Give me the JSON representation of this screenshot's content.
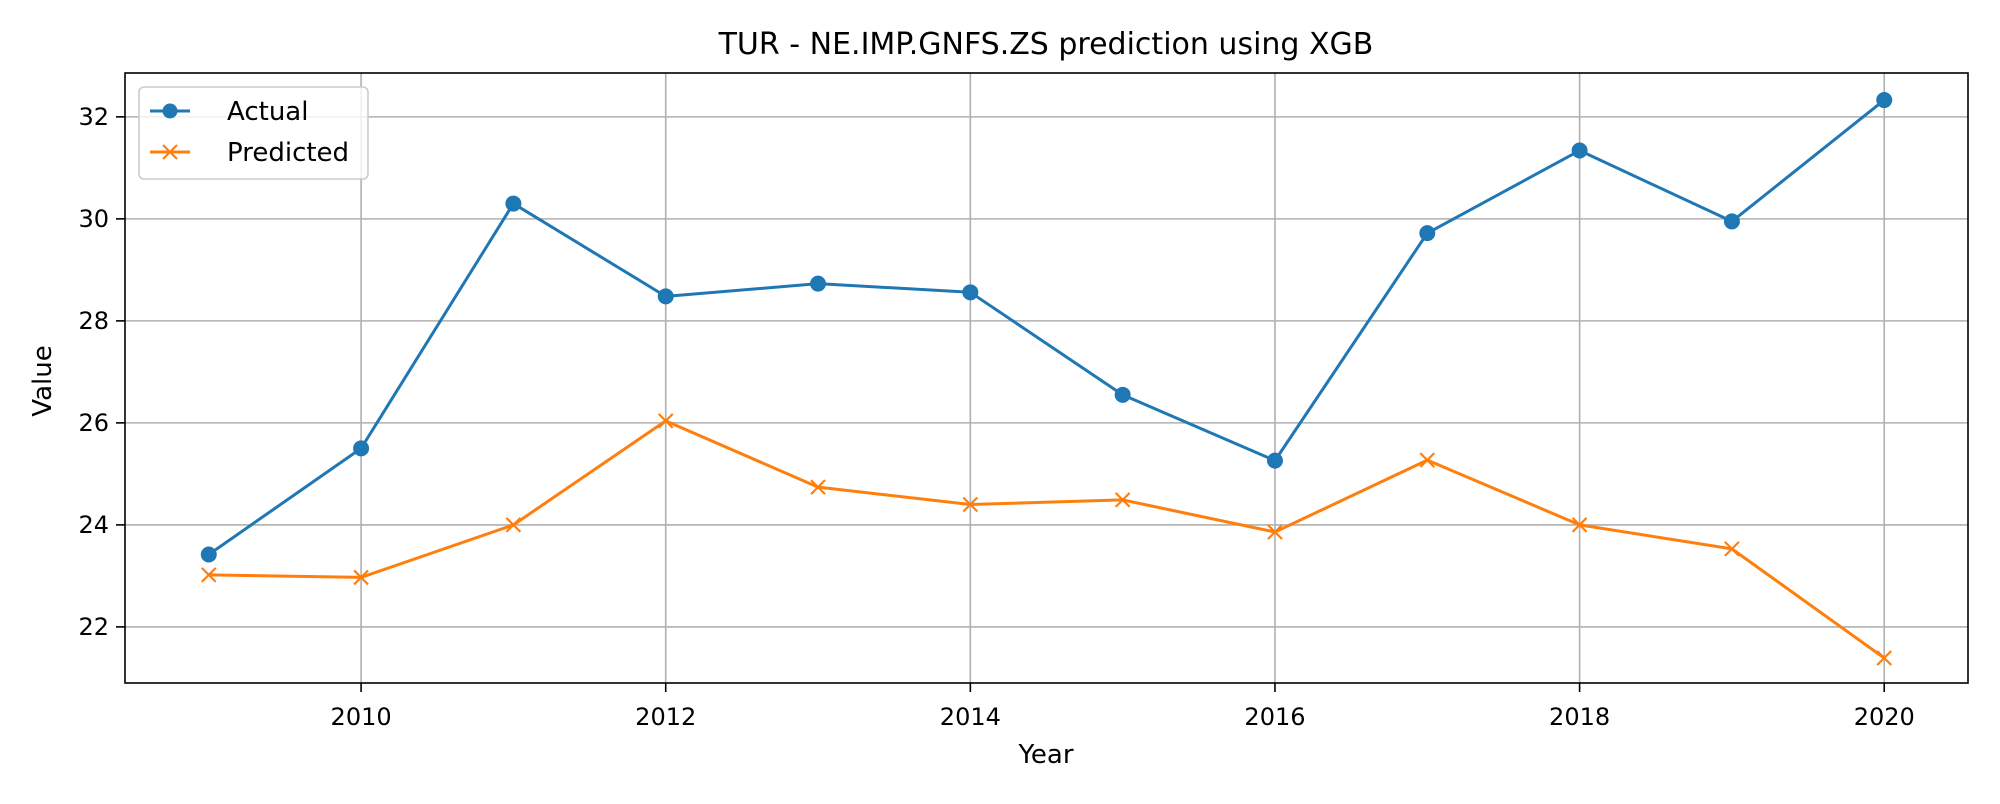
{
  "chart_data": {
    "type": "line",
    "title": "TUR - NE.IMP.GNFS.ZS prediction using XGB",
    "xlabel": "Year",
    "ylabel": "Value",
    "x": [
      2009,
      2010,
      2011,
      2012,
      2013,
      2014,
      2015,
      2016,
      2017,
      2018,
      2019,
      2020
    ],
    "xlim": [
      2008.45,
      2020.55
    ],
    "ylim": [
      20.9,
      32.86
    ],
    "x_ticks": [
      2010,
      2012,
      2014,
      2016,
      2018,
      2020
    ],
    "y_ticks": [
      22,
      24,
      26,
      28,
      30,
      32
    ],
    "grid": true,
    "legend_position": "top-left",
    "series": [
      {
        "name": "Actual",
        "marker": "circle",
        "color": "#1f77b4",
        "values": [
          23.42,
          25.5,
          30.3,
          28.48,
          28.73,
          28.56,
          26.55,
          25.26,
          29.72,
          31.34,
          29.95,
          32.33
        ]
      },
      {
        "name": "Predicted",
        "marker": "x",
        "color": "#ff7f0e",
        "values": [
          23.02,
          22.97,
          24.0,
          26.04,
          24.74,
          24.4,
          24.49,
          23.86,
          25.27,
          24.0,
          23.53,
          21.39
        ]
      }
    ]
  }
}
